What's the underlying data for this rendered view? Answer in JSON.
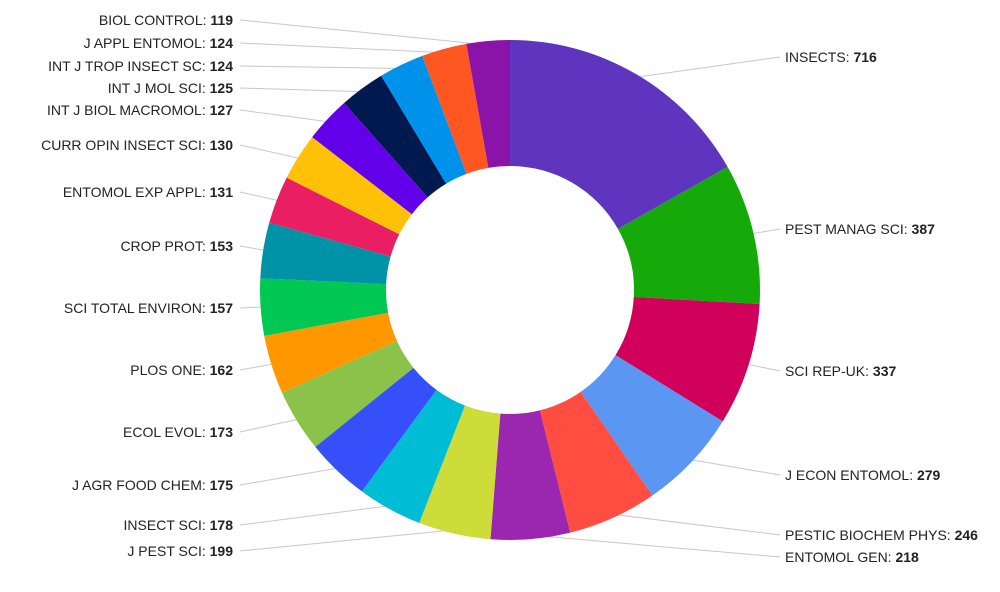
{
  "chart_data": {
    "type": "pie",
    "variant": "donut",
    "title": "",
    "categories": [
      "INSECTS",
      "PEST MANAG SCI",
      "SCI REP-UK",
      "J ECON ENTOMOL",
      "PESTIC BIOCHEM PHYS",
      "ENTOMOL GEN",
      "J PEST SCI",
      "INSECT SCI",
      "J AGR FOOD CHEM",
      "ECOL EVOL",
      "PLOS ONE",
      "SCI TOTAL ENVIRON",
      "CROP PROT",
      "ENTOMOL EXP APPL",
      "CURR OPIN INSECT SCI",
      "INT J BIOL MACROMOL",
      "INT J MOL SCI",
      "INT J TROP INSECT SC",
      "J APPL ENTOMOL",
      "BIOL CONTROL"
    ],
    "values": [
      716,
      387,
      337,
      279,
      246,
      218,
      199,
      178,
      175,
      173,
      162,
      157,
      153,
      131,
      130,
      127,
      125,
      124,
      124,
      119
    ],
    "colors": [
      "#5f35c0",
      "#16a90a",
      "#d1005a",
      "#5a96f2",
      "#ff4d42",
      "#9b27b0",
      "#cddc39",
      "#00bcd4",
      "#3550fa",
      "#8bc34a",
      "#ff9800",
      "#00c853",
      "#0093a8",
      "#e91e63",
      "#ffc107",
      "#6200ea",
      "#001a4f",
      "#0091ea",
      "#ff5722",
      "#8a14a8"
    ]
  }
}
